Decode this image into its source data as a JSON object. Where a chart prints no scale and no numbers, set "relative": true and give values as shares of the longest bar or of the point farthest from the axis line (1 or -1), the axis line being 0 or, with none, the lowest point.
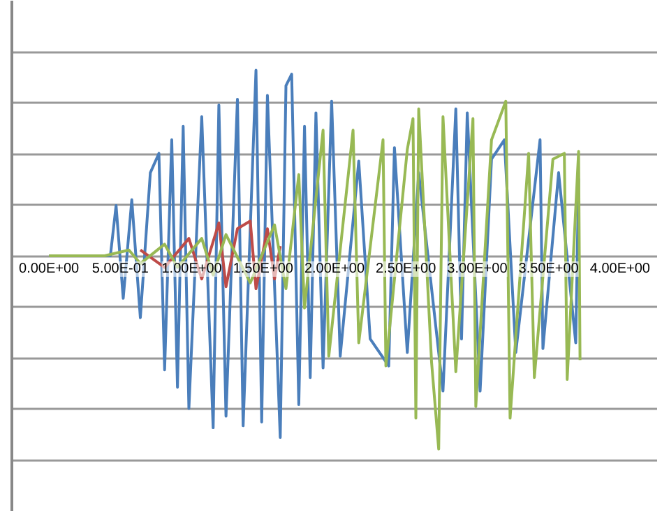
{
  "chart_data": {
    "type": "line",
    "relative": true,
    "grid": "y",
    "tick_labels": "x",
    "xlim": [
      0,
      4
    ],
    "xticks": [
      {
        "value": 0,
        "label": "0.00E+00"
      },
      {
        "value": 0.5,
        "label": "5.00E-01"
      },
      {
        "value": 1,
        "label": "1.00E+00"
      },
      {
        "value": 1.5,
        "label": "1.50E+00"
      },
      {
        "value": 2,
        "label": "2.00E+00"
      },
      {
        "value": 2.5,
        "label": "2.50E+00"
      },
      {
        "value": 3,
        "label": "3.00E+00"
      },
      {
        "value": 3.5,
        "label": "3.50E+00"
      },
      {
        "value": 4,
        "label": "4.00E+00"
      }
    ],
    "series": [
      {
        "color": "#4a7ebb",
        "x": [
          0,
          0.43,
          0.47,
          0.52,
          0.58,
          0.64,
          0.71,
          0.77,
          0.81,
          0.86,
          0.9,
          0.94,
          0.98,
          1.07,
          1.15,
          1.19,
          1.24,
          1.32,
          1.36,
          1.45,
          1.49,
          1.53,
          1.62,
          1.66,
          1.7,
          1.75,
          1.79,
          1.83,
          1.87,
          1.92,
          1.98,
          2.04,
          2.17,
          2.25,
          2.38,
          2.42,
          2.51,
          2.59,
          2.76,
          2.85,
          2.89,
          2.93,
          3.02,
          3.1,
          3.19,
          3.27,
          3.44,
          3.46,
          3.57,
          3.69,
          3.71
        ],
        "values": [
          0,
          0,
          0.26,
          -0.22,
          0.29,
          -0.32,
          0.43,
          0.53,
          -0.59,
          0.6,
          -0.68,
          0.67,
          -0.79,
          0.72,
          -0.89,
          0.78,
          -0.83,
          0.81,
          -0.88,
          0.96,
          -0.86,
          0.83,
          -0.94,
          0.88,
          0.94,
          -0.77,
          0.67,
          -0.63,
          0.74,
          -0.58,
          0.8,
          -0.52,
          0.49,
          -0.43,
          -0.57,
          0.56,
          -0.5,
          0.43,
          -0.7,
          0.76,
          -0.43,
          0.74,
          -0.7,
          0.5,
          0.6,
          -0.5,
          0.6,
          -0.48,
          0.43,
          -0.45,
          0.4
        ]
      },
      {
        "color": "#be4b48",
        "x": [
          0.64,
          0.81,
          0.98,
          1.07,
          1.19,
          1.24,
          1.32,
          1.41,
          1.45,
          1.53,
          1.58,
          1.62
        ],
        "values": [
          0.03,
          -0.06,
          0.09,
          -0.12,
          0.17,
          -0.16,
          0.14,
          0.18,
          -0.17,
          0.14,
          -0.12,
          0.05
        ]
      },
      {
        "color": "#98b954",
        "x": [
          0,
          0.39,
          0.56,
          0.64,
          0.81,
          0.9,
          1.07,
          1.15,
          1.24,
          1.41,
          1.58,
          1.66,
          1.75,
          1.79,
          1.92,
          1.96,
          2.13,
          2.17,
          2.34,
          2.36,
          2.51,
          2.55,
          2.57,
          2.59,
          2.68,
          2.73,
          2.76,
          2.85,
          2.97,
          2.99,
          3.1,
          3.2,
          3.23,
          3.36,
          3.4,
          3.53,
          3.61,
          3.63,
          3.71,
          3.72
        ],
        "values": [
          0,
          0,
          0.03,
          -0.04,
          0.06,
          -0.06,
          0.09,
          -0.1,
          0.11,
          -0.14,
          0.16,
          -0.17,
          0.42,
          -0.27,
          0.65,
          -0.52,
          0.65,
          -0.45,
          0.6,
          -0.57,
          0.55,
          0.71,
          -0.84,
          0.76,
          -0.55,
          -1,
          0.72,
          -0.6,
          0.71,
          -0.78,
          0.6,
          0.8,
          -0.84,
          0.53,
          -0.63,
          0.5,
          0.53,
          -0.64,
          0.54,
          -0.54
        ]
      }
    ]
  }
}
